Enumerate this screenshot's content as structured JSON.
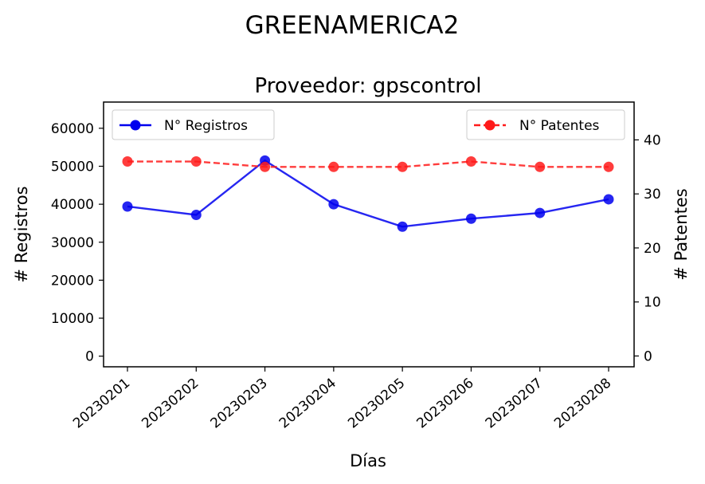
{
  "figure": {
    "suptitle": "GREENAMERICA2"
  },
  "chart_data": {
    "type": "line",
    "title": "Proveedor: gpscontrol",
    "xlabel": "Días",
    "ylabel_left": "# Registros",
    "ylabel_right": "# Patentes",
    "categories": [
      "20230201",
      "20230202",
      "20230203",
      "20230204",
      "20230205",
      "20230206",
      "20230207",
      "20230208"
    ],
    "left_axis": {
      "ylim": [
        -2800,
        66900
      ],
      "ticks": [
        0,
        10000,
        20000,
        30000,
        40000,
        50000,
        60000
      ]
    },
    "right_axis": {
      "ylim": [
        -2,
        47
      ],
      "ticks": [
        0,
        10,
        20,
        30,
        40
      ]
    },
    "series": [
      {
        "name": "N° Registros",
        "axis": "left",
        "color": "#0000ee",
        "line_style": "solid",
        "marker": "circle",
        "values": [
          39400,
          37200,
          51500,
          40000,
          34100,
          36200,
          37700,
          41300
        ]
      },
      {
        "name": "N° Patentes",
        "axis": "right",
        "color": "#ff1a1a",
        "line_style": "dashed",
        "marker": "circle",
        "values": [
          36,
          36,
          35,
          35,
          35,
          36,
          35,
          35
        ]
      }
    ],
    "legend": {
      "left": {
        "placement": "upper-left",
        "label": "N° Registros"
      },
      "right": {
        "placement": "upper-right",
        "label": "N° Patentes"
      }
    },
    "grid": false
  }
}
